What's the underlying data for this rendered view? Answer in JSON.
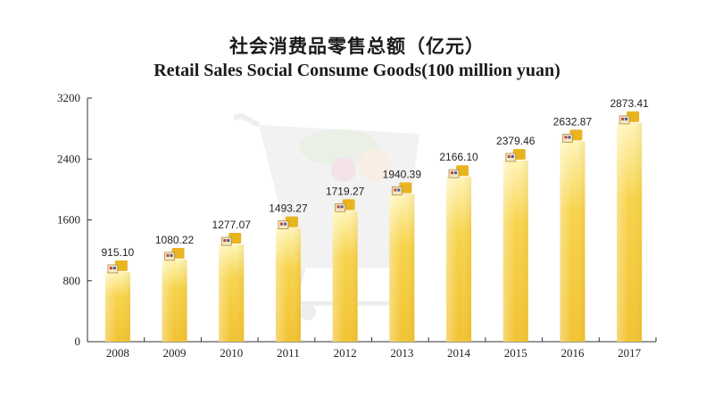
{
  "chart_data": {
    "type": "bar",
    "title": "社会消费品零售总额（亿元）",
    "subtitle": "Retail Sales Social Consume Goods(100 million yuan)",
    "categories": [
      "2008",
      "2009",
      "2010",
      "2011",
      "2012",
      "2013",
      "2014",
      "2015",
      "2016",
      "2017"
    ],
    "values": [
      915.1,
      1080.22,
      1277.07,
      1493.27,
      1719.27,
      1940.39,
      2166.1,
      2379.46,
      2632.87,
      2873.41
    ],
    "value_labels": [
      "915.10",
      "1080.22",
      "1277.07",
      "1493.27",
      "1719.27",
      "1940.39",
      "2166.10",
      "2379.46",
      "2632.87",
      "2873.41"
    ],
    "yticks": [
      0,
      800,
      1600,
      2400,
      3200
    ],
    "ylim": [
      0,
      3200
    ],
    "grid": false,
    "legend": "none",
    "colors": {
      "bar_top": "#fff5b8",
      "bar_mid": "#f7d34a",
      "bar_bottom": "#f2c230",
      "axis": "#333333",
      "cap": "#e8b420"
    }
  }
}
